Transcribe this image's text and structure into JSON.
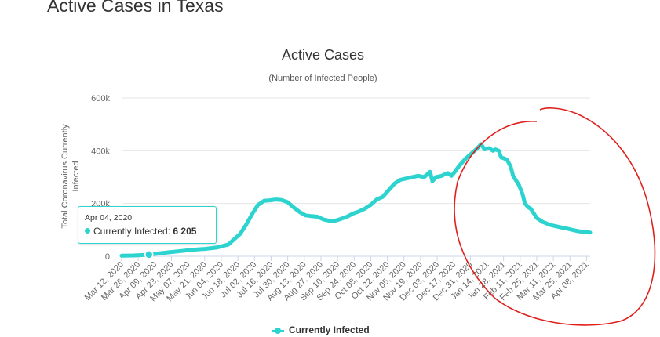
{
  "page": {
    "heading": "Active Cases in Texas"
  },
  "colors": {
    "series": "#2dd4cf",
    "annotation": "#e0201c",
    "grid": "#e6e6e6"
  },
  "tooltip": {
    "date": "Apr 04, 2020",
    "series": "Currently Infected",
    "value": "6 205"
  },
  "chart_data": {
    "type": "line",
    "title": "Active Cases",
    "subtitle": "(Number of Infected People)",
    "ylabel": "Total Coronavirus Currently Infected",
    "ylabel_lines": [
      "Total Coronavirus Currently",
      "Infected"
    ],
    "xlabel": "",
    "ylim": [
      0,
      600000
    ],
    "yticks": [
      0,
      200000,
      400000,
      600000
    ],
    "ytick_labels": [
      "0",
      "200k",
      "400k",
      "600k"
    ],
    "xlim": [
      0,
      395
    ],
    "x_ticks": [
      {
        "day": 0,
        "label": "Mar 12, 2020"
      },
      {
        "day": 14,
        "label": "Mar 26, 2020"
      },
      {
        "day": 28,
        "label": "Apr 09, 2020"
      },
      {
        "day": 42,
        "label": "Apr 23, 2020"
      },
      {
        "day": 56,
        "label": "May 07, 2020"
      },
      {
        "day": 70,
        "label": "May 21, 2020"
      },
      {
        "day": 84,
        "label": "Jun 04, 2020"
      },
      {
        "day": 98,
        "label": "Jun 18, 2020"
      },
      {
        "day": 112,
        "label": "Jul 02, 2020"
      },
      {
        "day": 126,
        "label": "Jul 16, 2020"
      },
      {
        "day": 140,
        "label": "Jul 30, 2020"
      },
      {
        "day": 154,
        "label": "Aug 13, 2020"
      },
      {
        "day": 168,
        "label": "Aug 27, 2020"
      },
      {
        "day": 182,
        "label": "Sep 10, 2020"
      },
      {
        "day": 196,
        "label": "Sep 24, 2020"
      },
      {
        "day": 210,
        "label": "Oct 08, 2020"
      },
      {
        "day": 224,
        "label": "Oct 22, 2020"
      },
      {
        "day": 238,
        "label": "Nov 05, 2020"
      },
      {
        "day": 252,
        "label": "Nov 19, 2020"
      },
      {
        "day": 266,
        "label": "Dec 03, 2020"
      },
      {
        "day": 280,
        "label": "Dec 17, 2020"
      },
      {
        "day": 294,
        "label": "Dec 31, 2020"
      },
      {
        "day": 308,
        "label": "Jan 14, 2021"
      },
      {
        "day": 322,
        "label": "Jan 28, 2021"
      },
      {
        "day": 336,
        "label": "Feb 11, 2021"
      },
      {
        "day": 350,
        "label": "Feb 25, 2021"
      },
      {
        "day": 364,
        "label": "Mar 11, 2021"
      },
      {
        "day": 378,
        "label": "Mar 25, 2021"
      },
      {
        "day": 392,
        "label": "Apr 08, 2021"
      }
    ],
    "series": [
      {
        "name": "Currently Infected",
        "x": [
          0,
          10,
          20,
          23,
          30,
          40,
          50,
          60,
          70,
          80,
          90,
          100,
          105,
          110,
          115,
          120,
          125,
          130,
          135,
          140,
          145,
          150,
          155,
          160,
          165,
          170,
          175,
          180,
          185,
          190,
          195,
          200,
          205,
          210,
          215,
          220,
          225,
          230,
          235,
          240,
          245,
          250,
          255,
          260,
          262,
          265,
          270,
          272,
          275,
          278,
          280,
          285,
          290,
          295,
          300,
          303,
          306,
          310,
          313,
          315,
          318,
          320,
          323,
          325,
          328,
          330,
          335,
          338,
          340,
          343,
          345,
          350,
          355,
          358,
          360,
          365,
          370,
          375,
          380,
          385,
          390,
          395
        ],
        "y": [
          2000,
          3000,
          5000,
          6205,
          10000,
          15000,
          20000,
          25000,
          28000,
          33000,
          45000,
          85000,
          120000,
          160000,
          195000,
          210000,
          212000,
          215000,
          213000,
          205000,
          185000,
          168000,
          155000,
          152000,
          150000,
          140000,
          135000,
          135000,
          142000,
          150000,
          162000,
          170000,
          180000,
          195000,
          215000,
          225000,
          250000,
          275000,
          290000,
          295000,
          300000,
          305000,
          300000,
          320000,
          285000,
          300000,
          305000,
          310000,
          315000,
          305000,
          315000,
          345000,
          370000,
          390000,
          410000,
          425000,
          405000,
          410000,
          400000,
          405000,
          400000,
          375000,
          370000,
          365000,
          340000,
          305000,
          270000,
          235000,
          200000,
          185000,
          180000,
          145000,
          130000,
          125000,
          120000,
          115000,
          110000,
          105000,
          100000,
          95000,
          92000,
          90000
        ]
      }
    ]
  }
}
